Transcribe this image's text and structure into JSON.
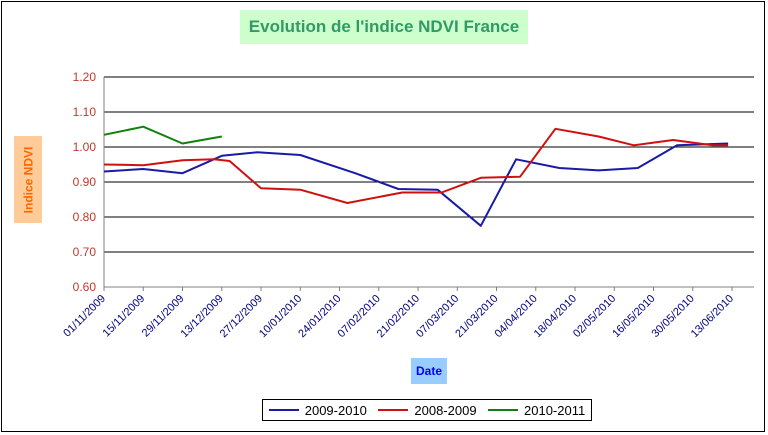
{
  "chart_data": {
    "type": "line",
    "title": "Evolution de l'indice NDVI France",
    "xlabel": "Date",
    "ylabel": "Indice NDVI",
    "ylim": [
      0.6,
      1.2
    ],
    "yticks": [
      "0.60",
      "0.70",
      "0.80",
      "0.90",
      "1.00",
      "1.10",
      "1.20"
    ],
    "x_tick_labels": [
      "01/11/2009",
      "15/11/2009",
      "29/11/2009",
      "13/12/2009",
      "27/12/2009",
      "10/01/2010",
      "24/01/2010",
      "07/02/2010",
      "21/02/2010",
      "07/03/2010",
      "21/03/2010",
      "04/04/2010",
      "18/04/2010",
      "02/05/2010",
      "16/05/2010",
      "30/05/2010",
      "13/06/2010"
    ],
    "grid": true,
    "legend_position": "bottom",
    "series": [
      {
        "name": "2009-2010",
        "color": "#1a1aa6",
        "points": [
          [
            0,
            0.93
          ],
          [
            1,
            0.937
          ],
          [
            2,
            0.925
          ],
          [
            3,
            0.975
          ],
          [
            3.9,
            0.985
          ],
          [
            5,
            0.977
          ],
          [
            6.4,
            0.925
          ],
          [
            7.5,
            0.88
          ],
          [
            8.5,
            0.878
          ],
          [
            9.6,
            0.775
          ],
          [
            10.5,
            0.965
          ],
          [
            11.6,
            0.94
          ],
          [
            12.6,
            0.933
          ],
          [
            13.6,
            0.94
          ],
          [
            14.6,
            1.005
          ],
          [
            15.9,
            1.01
          ]
        ]
      },
      {
        "name": "2008-2009",
        "color": "#d01010",
        "points": [
          [
            0,
            0.95
          ],
          [
            1,
            0.948
          ],
          [
            2,
            0.962
          ],
          [
            2.8,
            0.965
          ],
          [
            3.2,
            0.96
          ],
          [
            4,
            0.882
          ],
          [
            5,
            0.878
          ],
          [
            6.2,
            0.84
          ],
          [
            7.6,
            0.87
          ],
          [
            8.6,
            0.87
          ],
          [
            9.6,
            0.912
          ],
          [
            10.6,
            0.915
          ],
          [
            11.5,
            1.052
          ],
          [
            12.6,
            1.03
          ],
          [
            13.5,
            1.005
          ],
          [
            14.5,
            1.02
          ],
          [
            15.5,
            1.005
          ],
          [
            15.9,
            1.005
          ]
        ]
      },
      {
        "name": "2010-2011",
        "color": "#108010",
        "points": [
          [
            0,
            1.035
          ],
          [
            1,
            1.058
          ],
          [
            2,
            1.01
          ],
          [
            3,
            1.03
          ]
        ]
      }
    ]
  }
}
